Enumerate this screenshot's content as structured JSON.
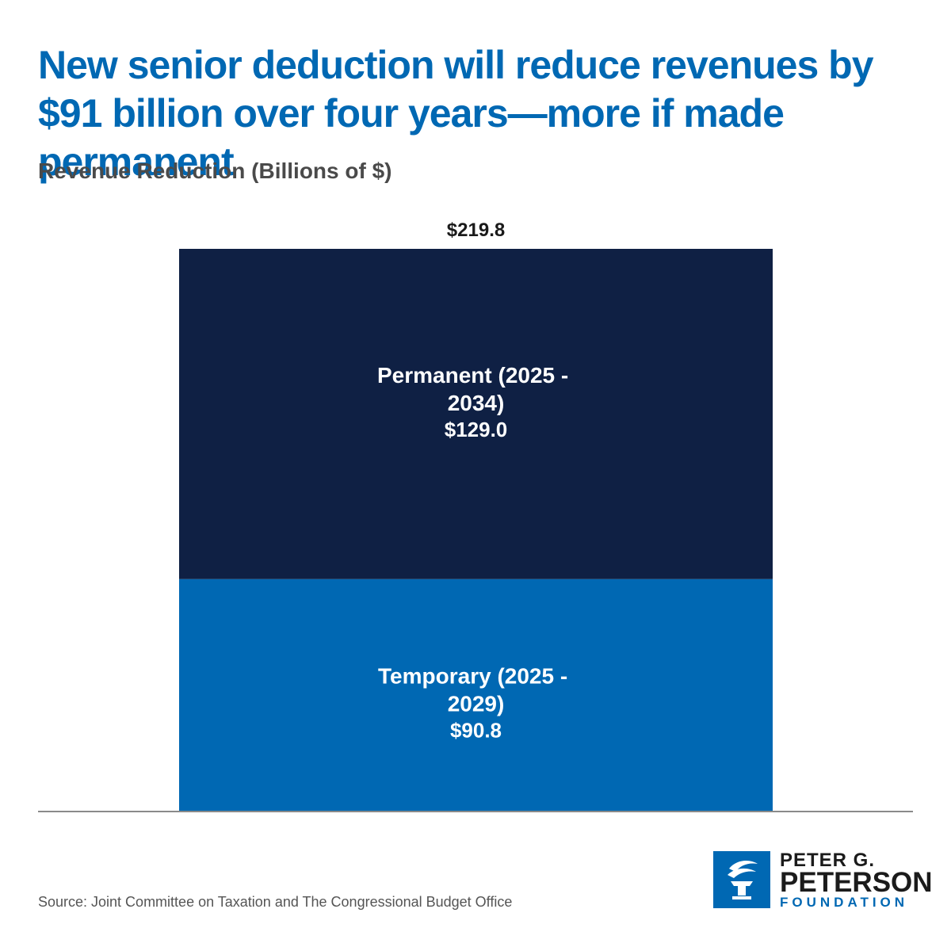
{
  "header": {
    "title": "New senior deduction will reduce revenues by $91 billion over four years—more if made permanent",
    "subtitle": "Revenue Reduction (Billions of $)"
  },
  "colors": {
    "title": "#0068b3",
    "permanent": "#0f2044",
    "temporary": "#0068b3",
    "baseline": "#8a8a8a"
  },
  "chart_data": {
    "type": "bar",
    "stacked": true,
    "title": "New senior deduction will reduce revenues by $91 billion over four years—more if made permanent",
    "ylabel": "Revenue Reduction (Billions of $)",
    "ylim": [
      0,
      219.8
    ],
    "total": 219.8,
    "total_label": "$219.8",
    "series": [
      {
        "name": "Temporary (2025 - 2029)",
        "label_lines": [
          "Temporary (2025 -",
          "2029)"
        ],
        "value": 90.8,
        "value_label": "$90.8",
        "color": "#0068b3"
      },
      {
        "name": "Permanent (2025 - 2034)",
        "label_lines": [
          "Permanent (2025 -",
          "2034)"
        ],
        "value": 129.0,
        "value_label": "$129.0",
        "color": "#0f2044"
      }
    ]
  },
  "footer": {
    "source": "Source: Joint Committee on Taxation and The Congressional Budget Office"
  },
  "logo": {
    "line1": "PETER G.",
    "line2": "PETERSON",
    "line3": "FOUNDATION",
    "icon": "torch-icon"
  }
}
